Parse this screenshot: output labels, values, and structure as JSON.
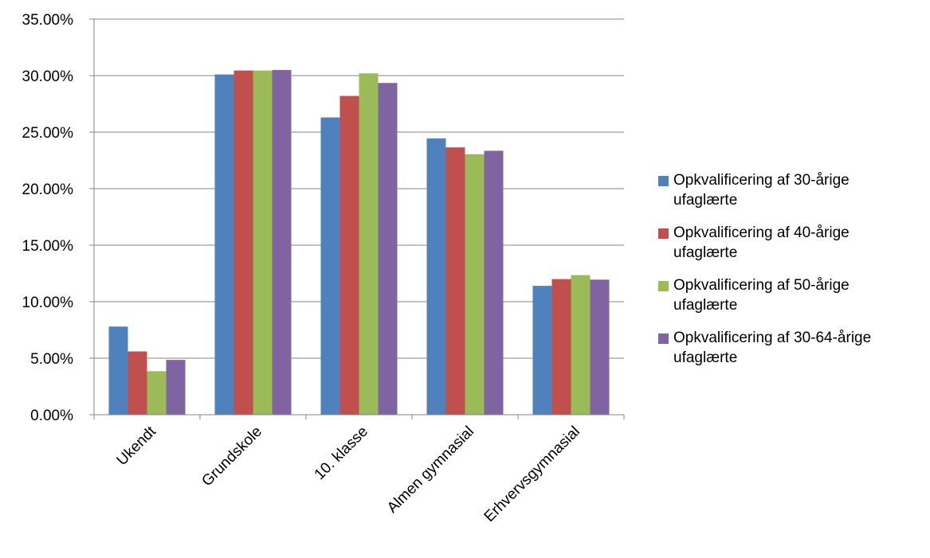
{
  "chart_data": {
    "type": "bar",
    "categories": [
      "Ukendt",
      "Grundskole",
      "10. klasse",
      "Almen gymnasial",
      "Erhvervsgymnasial"
    ],
    "series": [
      {
        "name": "Opkvalificering af 30-årige ufaglærte",
        "values": [
          7.8,
          30.1,
          26.3,
          24.45,
          11.4
        ],
        "color": "#4F81BD"
      },
      {
        "name": "Opkvalificering af 40-årige ufaglærte",
        "values": [
          5.6,
          30.45,
          28.2,
          23.65,
          12.0
        ],
        "color": "#C0504D"
      },
      {
        "name": "Opkvalificering af 50-årige ufaglærte",
        "values": [
          3.85,
          30.45,
          30.2,
          23.05,
          12.35
        ],
        "color": "#9BBB59"
      },
      {
        "name": "Opkvalificering af 30-64-årige ufaglærte",
        "values": [
          4.85,
          30.5,
          29.35,
          23.35,
          11.95
        ],
        "color": "#8064A2"
      }
    ],
    "y_ticks": [
      "0.00%",
      "5.00%",
      "10.00%",
      "15.00%",
      "20.00%",
      "25.00%",
      "30.00%",
      "35.00%"
    ],
    "ylim": [
      0,
      35
    ],
    "grid": true,
    "legend_position": "right"
  }
}
